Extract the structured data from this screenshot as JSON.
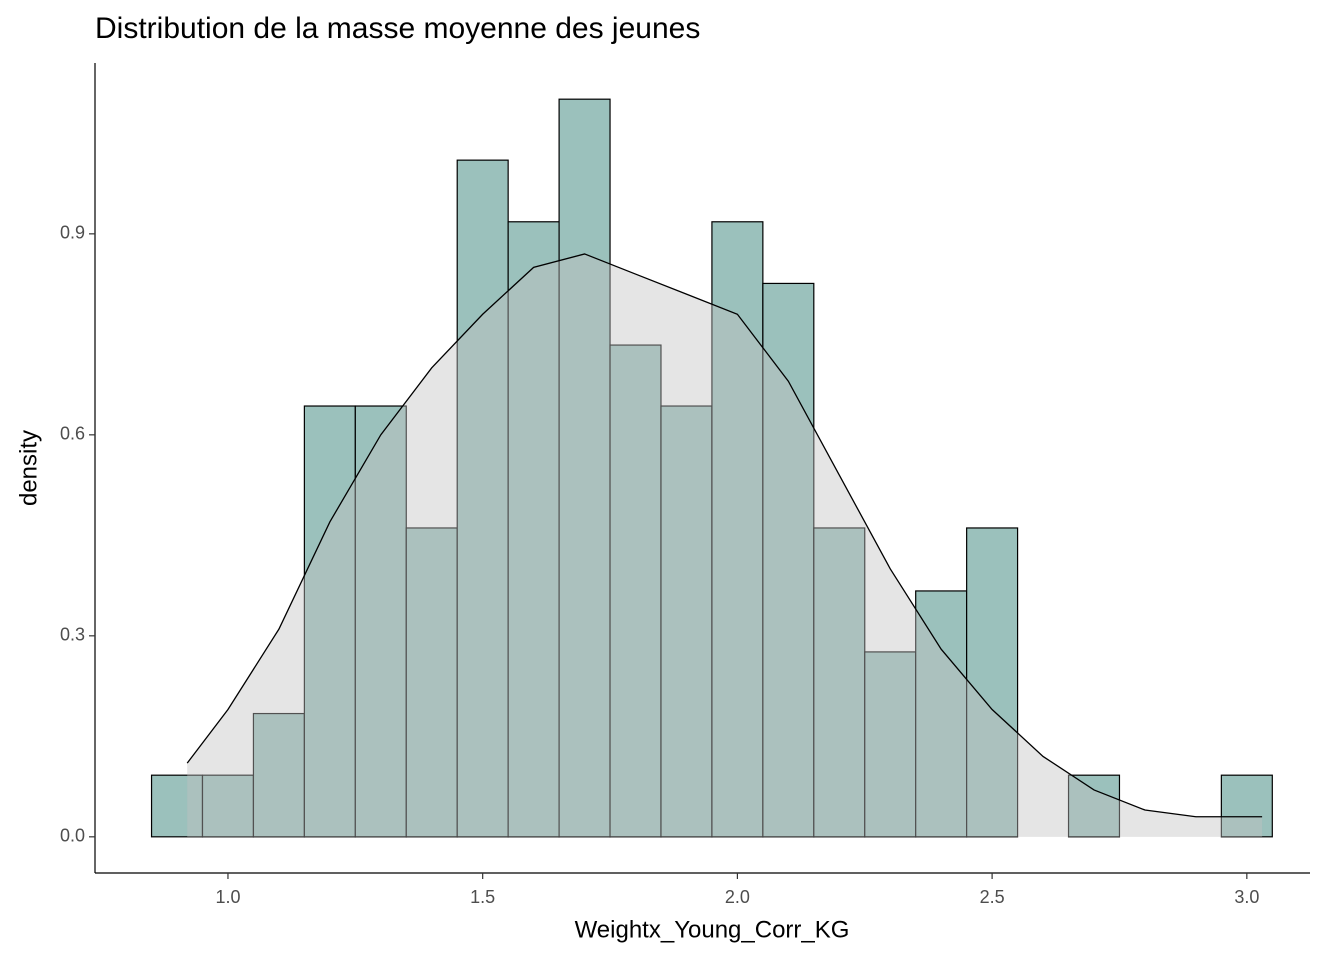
{
  "chart_data": {
    "type": "histogram",
    "title": "Distribution de la masse moyenne des jeunes",
    "x_label": "Weightx_Young_Corr_KG",
    "y_label": "density",
    "bins": [
      0.85,
      0.95,
      1.05,
      1.15,
      1.25,
      1.35,
      1.45,
      1.55,
      1.65,
      1.75,
      1.85,
      1.95,
      2.05,
      2.15,
      2.25,
      2.35,
      2.45,
      2.55,
      2.65,
      2.75,
      2.85,
      2.95,
      3.05
    ],
    "values": [
      0.092,
      0.092,
      0.184,
      0.643,
      0.643,
      0.461,
      1.01,
      0.918,
      1.101,
      0.734,
      0.643,
      0.918,
      0.826,
      0.461,
      0.276,
      0.367,
      0.461,
      0,
      0.092,
      0,
      0,
      0.092
    ],
    "color": "#9bc1bc",
    "edge_color": "#000000",
    "density": {
      "x": [
        0.92,
        1.0,
        1.1,
        1.2,
        1.3,
        1.4,
        1.5,
        1.6,
        1.7,
        1.8,
        1.9,
        2.0,
        2.1,
        2.2,
        2.3,
        2.4,
        2.5,
        2.6,
        2.7,
        2.8,
        2.9,
        3.03
      ],
      "values": [
        0.11,
        0.19,
        0.31,
        0.47,
        0.6,
        0.7,
        0.78,
        0.85,
        0.87,
        0.84,
        0.81,
        0.78,
        0.68,
        0.54,
        0.4,
        0.28,
        0.19,
        0.12,
        0.07,
        0.04,
        0.03,
        0.03
      ],
      "fill": "#c1c1c1",
      "line_color": "#000000"
    },
    "xlim": [
      0.739,
      3.124
    ],
    "ylim": [
      -0.054,
      1.155
    ],
    "xticks": [
      {
        "value": 1,
        "label": "1.0"
      },
      1.5,
      {
        "value": 2,
        "label": "2.0"
      },
      2.5,
      {
        "value": 3,
        "label": "3.0"
      }
    ],
    "yticks": [
      {
        "value": 0,
        "label": "0.0"
      },
      0.3,
      0.6,
      0.9
    ]
  }
}
